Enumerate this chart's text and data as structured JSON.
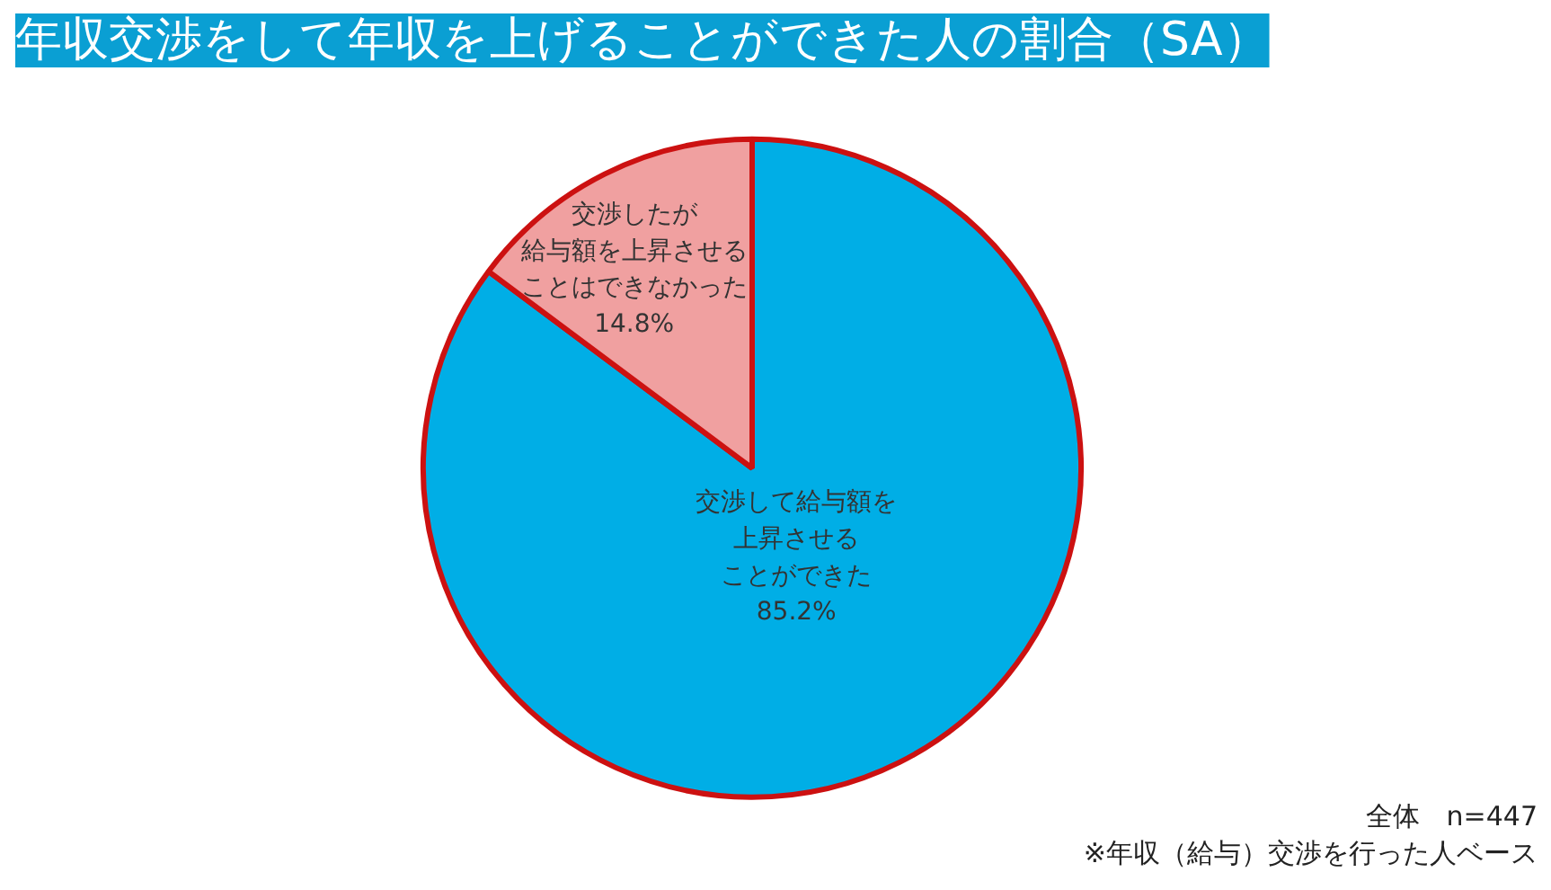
{
  "chart_data": {
    "type": "pie",
    "title": "年収交渉をして年収を上げることができた人の割合（SA）",
    "categories": [
      "交渉して給与額を上昇させることができた",
      "交渉したが給与額を上昇させることはできなかった"
    ],
    "values": [
      85.2,
      14.8
    ],
    "value_labels": [
      "85.2%",
      "14.8%"
    ],
    "colors": [
      "#00aee6",
      "#f0a0a0"
    ],
    "annotations": [
      "全体　n=447",
      "※年収（給与）交渉を行った人ベース"
    ]
  }
}
